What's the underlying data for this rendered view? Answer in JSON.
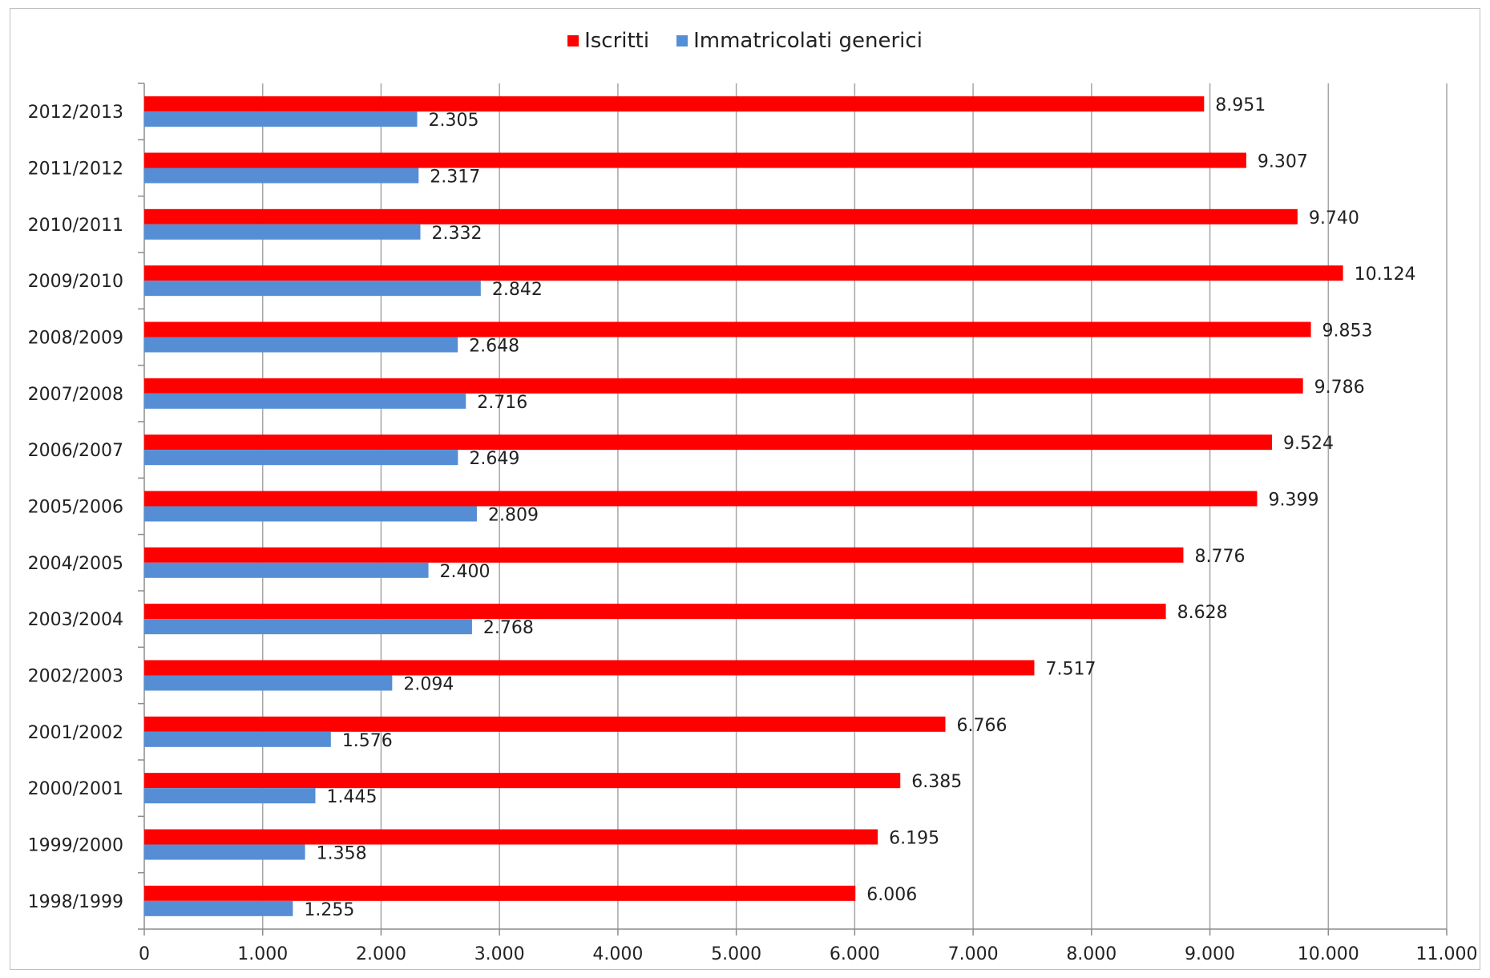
{
  "chart_data": {
    "type": "bar",
    "orientation": "horizontal",
    "categories": [
      "1998/1999",
      "1999/2000",
      "2000/2001",
      "2001/2002",
      "2002/2003",
      "2003/2004",
      "2004/2005",
      "2005/2006",
      "2006/2007",
      "2007/2008",
      "2008/2009",
      "2009/2010",
      "2010/2011",
      "2011/2012",
      "2012/2013"
    ],
    "series": [
      {
        "name": "Iscritti",
        "color": "#ff0000",
        "values": [
          6006,
          6195,
          6385,
          6766,
          7517,
          8628,
          8776,
          9399,
          9524,
          9786,
          9853,
          10124,
          9740,
          9307,
          8951
        ],
        "labels": [
          "6.006",
          "6.195",
          "6.385",
          "6.766",
          "7.517",
          "8.628",
          "8.776",
          "9.399",
          "9.524",
          "9.786",
          "9.853",
          "10.124",
          "9.740",
          "9.307",
          "8.951"
        ]
      },
      {
        "name": "Immatricolati generici",
        "color": "#558ed5",
        "values": [
          1255,
          1358,
          1445,
          1576,
          2094,
          2768,
          2400,
          2809,
          2649,
          2716,
          2648,
          2842,
          2332,
          2317,
          2305
        ],
        "labels": [
          "1.255",
          "1.358",
          "1.445",
          "1.576",
          "2.094",
          "2.768",
          "2.400",
          "2.809",
          "2.649",
          "2.716",
          "2.648",
          "2.842",
          "2.332",
          "2.317",
          "2.305"
        ]
      }
    ],
    "xlim": [
      0,
      11000
    ],
    "xticks": [
      0,
      1000,
      2000,
      3000,
      4000,
      5000,
      6000,
      7000,
      8000,
      9000,
      10000,
      11000
    ],
    "xtick_labels": [
      "0",
      "1.000",
      "2.000",
      "3.000",
      "4.000",
      "5.000",
      "6.000",
      "7.000",
      "8.000",
      "9.000",
      "10.000",
      "11.000"
    ],
    "grid": "vertical",
    "legend_position": "top-center",
    "category_order": "bottom-to-top"
  }
}
